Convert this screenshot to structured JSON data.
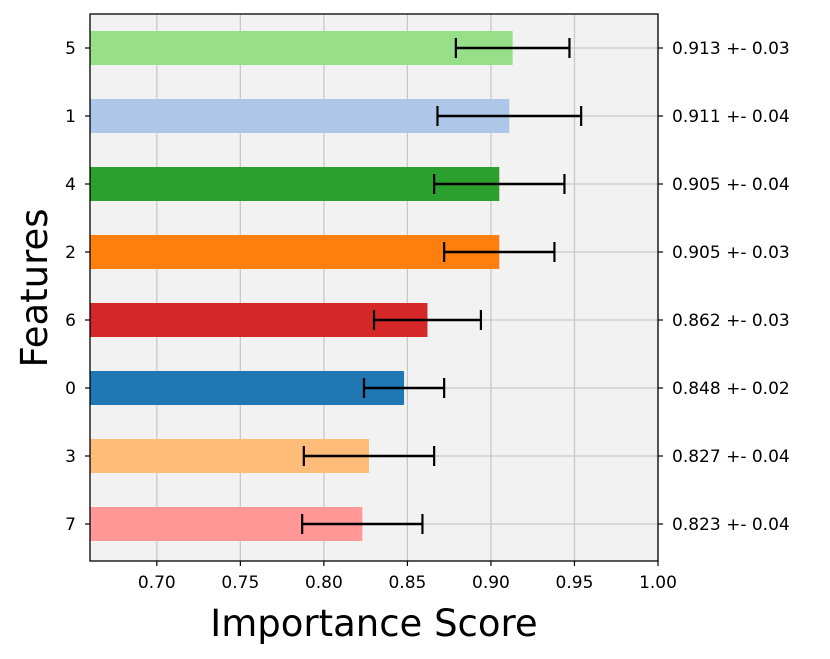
{
  "chart_data": {
    "type": "bar",
    "orientation": "horizontal",
    "title": "",
    "xlabel": "Importance Score",
    "ylabel": "Features",
    "xlim": [
      0.66,
      1.0
    ],
    "x_ticks": [
      "0.70",
      "0.75",
      "0.80",
      "0.85",
      "0.90",
      "0.95",
      "1.00"
    ],
    "x_tick_values": [
      0.7,
      0.75,
      0.8,
      0.85,
      0.9,
      0.95,
      1.0
    ],
    "grid": true,
    "legend": "none",
    "categories": [
      "5",
      "1",
      "4",
      "2",
      "6",
      "0",
      "3",
      "7"
    ],
    "values": [
      0.913,
      0.911,
      0.905,
      0.905,
      0.862,
      0.848,
      0.827,
      0.823
    ],
    "errors": [
      0.034,
      0.043,
      0.039,
      0.033,
      0.032,
      0.024,
      0.039,
      0.036
    ],
    "colors": [
      "#98df8a",
      "#aec7e8",
      "#2ca02c",
      "#ff7f0e",
      "#d62728",
      "#1f77b4",
      "#ffbb78",
      "#ff9896"
    ],
    "value_labels": [
      "0.913 +- 0.03",
      "0.911 +- 0.04",
      "0.905 +- 0.04",
      "0.905 +- 0.03",
      "0.862 +- 0.03",
      "0.848 +- 0.02",
      "0.827 +- 0.04",
      "0.823 +- 0.04"
    ],
    "plot_background": "#f2f2f2",
    "grid_color": "#c8c8c8"
  }
}
